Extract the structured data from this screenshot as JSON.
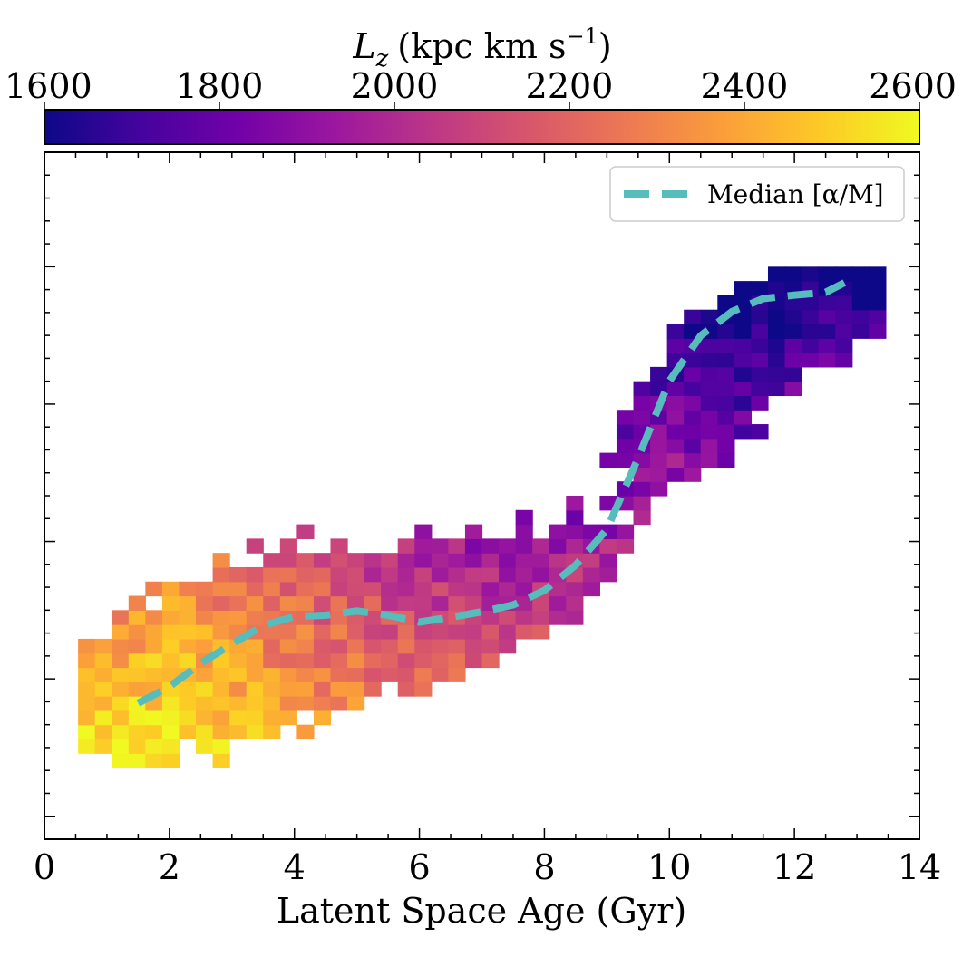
{
  "chart_data": {
    "type": "heatmap",
    "title": "",
    "xlabel": "Latent Space Age (Gyr)",
    "ylabel": "",
    "xlim": [
      0,
      14
    ],
    "x_ticks": [
      "0",
      "2",
      "4",
      "6",
      "8",
      "10",
      "12",
      "14"
    ],
    "grid": false,
    "colorbar": {
      "label_var": "L",
      "label_sub": "z",
      "label_units": "(kpc km s",
      "label_sup": "−1",
      "label_close": ")",
      "range": [
        1600,
        2600
      ],
      "ticks": [
        "1600",
        "1800",
        "2000",
        "2200",
        "2400",
        "2600"
      ],
      "colormap": "plasma",
      "colormap_stops": [
        "#0d0887",
        "#46039f",
        "#7201a8",
        "#9c179e",
        "#bd3786",
        "#d8576b",
        "#ed7953",
        "#fb9f3a",
        "#fdca26",
        "#f0f921"
      ]
    },
    "legend": {
      "placement": "top-right",
      "entries": [
        {
          "label": "Median [α/M]",
          "color": "#56bcbc",
          "style": "dashed"
        }
      ]
    },
    "median_line": {
      "name": "Median [α/M]",
      "color": "#56bcbc",
      "x": [
        1.5,
        2.0,
        2.5,
        3.0,
        3.5,
        4.0,
        4.5,
        5.0,
        5.5,
        6.0,
        6.5,
        7.0,
        7.5,
        8.0,
        8.5,
        9.0,
        9.5,
        10.0,
        10.5,
        11.0,
        11.5,
        12.0,
        12.5,
        12.8
      ],
      "y": [
        0.198,
        0.222,
        0.256,
        0.284,
        0.311,
        0.324,
        0.326,
        0.332,
        0.326,
        0.316,
        0.323,
        0.331,
        0.341,
        0.362,
        0.399,
        0.451,
        0.555,
        0.667,
        0.733,
        0.768,
        0.787,
        0.792,
        0.796,
        0.81
      ]
    },
    "heatmap": {
      "x_range": [
        0.5,
        13.5
      ],
      "y_range": [
        0.1,
        0.83
      ],
      "ridge": {
        "x": [
          0.5,
          2.0,
          4.0,
          6.0,
          8.0,
          9.0,
          10.0,
          12.0,
          13.5
        ],
        "y": [
          0.2,
          0.24,
          0.3,
          0.33,
          0.37,
          0.46,
          0.62,
          0.76,
          0.79
        ]
      },
      "halfwidth": {
        "x": [
          0.5,
          2.0,
          4.0,
          6.0,
          8.0,
          9.0,
          10.0,
          12.0,
          13.5
        ],
        "w": [
          0.09,
          0.13,
          0.14,
          0.11,
          0.09,
          0.1,
          0.12,
          0.1,
          0.06
        ]
      },
      "lz": {
        "x": [
          0.5,
          2.0,
          4.0,
          6.0,
          8.0,
          10.0,
          11.0,
          13.5
        ],
        "v": [
          2460,
          2470,
          2260,
          2090,
          1990,
          1830,
          1660,
          1640
        ]
      }
    }
  }
}
